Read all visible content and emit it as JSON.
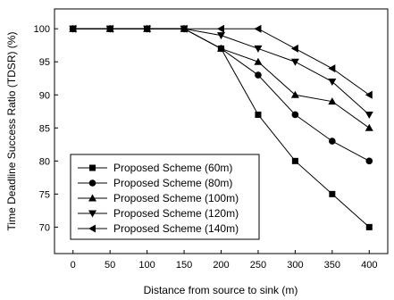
{
  "chart_data": {
    "type": "line",
    "xlabel": "Distance from source to sink (m)",
    "ylabel": "Time Deadline Success Ratio (TDSR) (%)",
    "x": [
      0,
      50,
      100,
      150,
      200,
      250,
      300,
      350,
      400
    ],
    "xlim": [
      -25,
      425
    ],
    "ylim": [
      66,
      103
    ],
    "xticks": [
      0,
      50,
      100,
      150,
      200,
      250,
      300,
      350,
      400
    ],
    "yticks": [
      70,
      75,
      80,
      85,
      90,
      95,
      100
    ],
    "grid": false,
    "legend_position": "bottom-left",
    "series": [
      {
        "name": "Proposed Scheme (60m)",
        "marker": "square",
        "values": [
          100,
          100,
          100,
          100,
          97,
          87,
          80,
          75,
          70
        ]
      },
      {
        "name": "Proposed Scheme (80m)",
        "marker": "circle",
        "values": [
          100,
          100,
          100,
          100,
          97,
          93,
          87,
          83,
          80
        ]
      },
      {
        "name": "Proposed Scheme (100m)",
        "marker": "triangle-up",
        "values": [
          100,
          100,
          100,
          100,
          97,
          95,
          90,
          89,
          85
        ]
      },
      {
        "name": "Proposed Scheme (120m)",
        "marker": "triangle-down",
        "values": [
          100,
          100,
          100,
          100,
          99,
          97,
          95,
          92,
          87
        ]
      },
      {
        "name": "Proposed Scheme (140m)",
        "marker": "triangle-left",
        "values": [
          100,
          100,
          100,
          100,
          100,
          100,
          97,
          94,
          90
        ]
      }
    ]
  }
}
